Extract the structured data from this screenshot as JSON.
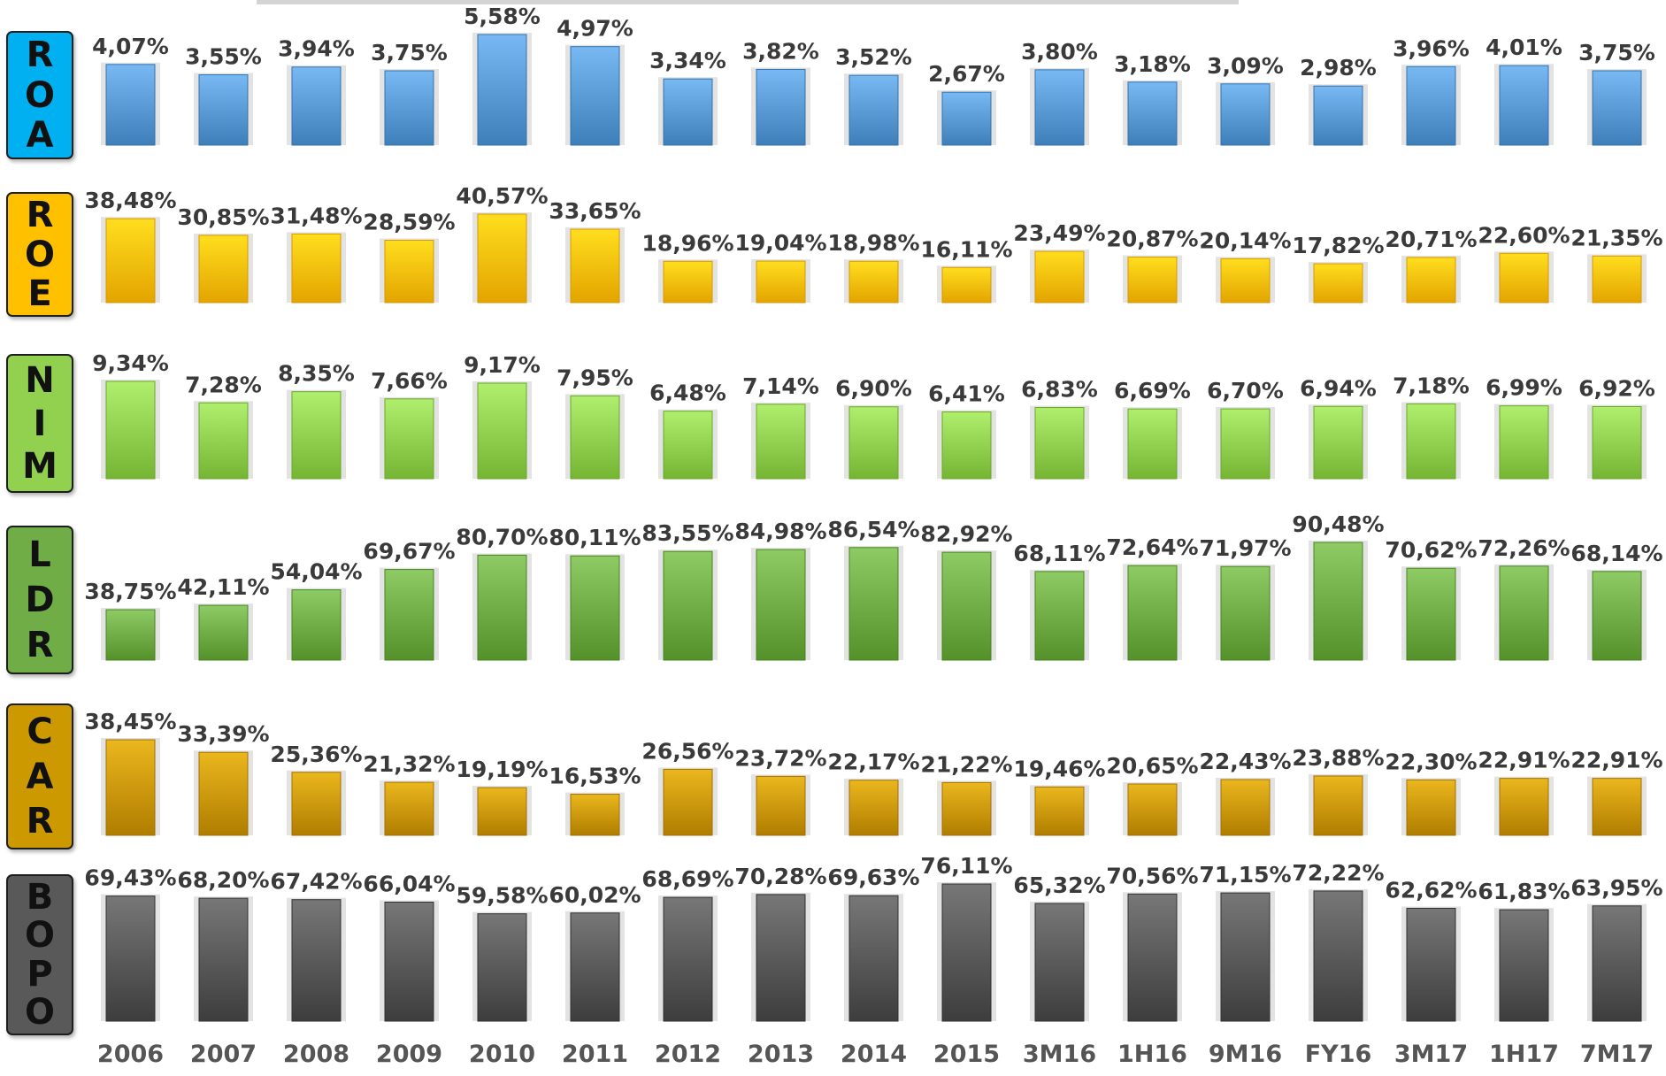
{
  "chart_data": {
    "type": "bar",
    "categories": [
      "2006",
      "2007",
      "2008",
      "2009",
      "2010",
      "2011",
      "2012",
      "2013",
      "2014",
      "2015",
      "3M16",
      "1H16",
      "9M16",
      "FY16",
      "3M17",
      "1H17",
      "7M17"
    ],
    "panels": [
      {
        "label": "ROA",
        "color": "#5b9bd5",
        "values": [
          4.07,
          3.55,
          3.94,
          3.75,
          5.58,
          4.97,
          3.34,
          3.82,
          3.52,
          2.67,
          3.8,
          3.18,
          3.09,
          2.98,
          3.96,
          4.01,
          3.75
        ],
        "value_labels": [
          "4,07%",
          "3,55%",
          "3,94%",
          "3,75%",
          "5,58%",
          "4,97%",
          "3,34%",
          "3,82%",
          "3,52%",
          "2,67%",
          "3,80%",
          "3,18%",
          "3,09%",
          "2,98%",
          "3,96%",
          "4,01%",
          "3,75%"
        ]
      },
      {
        "label": "ROE",
        "color": "#ffc000",
        "values": [
          38.48,
          30.85,
          31.48,
          28.59,
          40.57,
          33.65,
          18.96,
          19.04,
          18.98,
          16.11,
          23.49,
          20.87,
          20.14,
          17.82,
          20.71,
          22.6,
          21.35
        ],
        "value_labels": [
          "38,48%",
          "30,85%",
          "31,48%",
          "28,59%",
          "40,57%",
          "33,65%",
          "18,96%",
          "19,04%",
          "18,98%",
          "16,11%",
          "23,49%",
          "20,87%",
          "20,14%",
          "17,82%",
          "20,71%",
          "22,60%",
          "21,35%"
        ]
      },
      {
        "label": "NIM",
        "color": "#92d050",
        "values": [
          9.34,
          7.28,
          8.35,
          7.66,
          9.17,
          7.95,
          6.48,
          7.14,
          6.9,
          6.41,
          6.83,
          6.69,
          6.7,
          6.94,
          7.18,
          6.99,
          6.92
        ],
        "value_labels": [
          "9,34%",
          "7,28%",
          "8,35%",
          "7,66%",
          "9,17%",
          "7,95%",
          "6,48%",
          "7,14%",
          "6,90%",
          "6,41%",
          "6,83%",
          "6,69%",
          "6,70%",
          "6,94%",
          "7,18%",
          "6,99%",
          "6,92%"
        ]
      },
      {
        "label": "LDR",
        "color": "#70ad47",
        "values": [
          38.75,
          42.11,
          54.04,
          69.67,
          80.7,
          80.11,
          83.55,
          84.98,
          86.54,
          82.92,
          68.11,
          72.64,
          71.97,
          90.48,
          70.62,
          72.26,
          68.14
        ],
        "value_labels": [
          "38,75%",
          "42,11%",
          "54,04%",
          "69,67%",
          "80,70%",
          "80,11%",
          "83,55%",
          "84,98%",
          "86,54%",
          "82,92%",
          "68,11%",
          "72,64%",
          "71,97%",
          "90,48%",
          "70,62%",
          "72,26%",
          "68,14%"
        ]
      },
      {
        "label": "CAR",
        "color": "#cc9900",
        "values": [
          38.45,
          33.39,
          25.36,
          21.32,
          19.19,
          16.53,
          26.56,
          23.72,
          22.17,
          21.22,
          19.46,
          20.65,
          22.43,
          23.88,
          22.3,
          22.91,
          22.91
        ],
        "value_labels": [
          "38,45%",
          "33,39%",
          "25,36%",
          "21,32%",
          "19,19%",
          "16,53%",
          "26,56%",
          "23,72%",
          "22,17%",
          "21,22%",
          "19,46%",
          "20,65%",
          "22,43%",
          "23,88%",
          "22,30%",
          "22,91%",
          "22,91%"
        ]
      },
      {
        "label": "BOPO",
        "color": "#595959",
        "values": [
          69.43,
          68.2,
          67.42,
          66.04,
          59.58,
          60.02,
          68.69,
          70.28,
          69.63,
          76.11,
          65.32,
          70.56,
          71.15,
          72.22,
          62.62,
          61.83,
          63.95
        ],
        "value_labels": [
          "69,43%",
          "68,20%",
          "67,42%",
          "66,04%",
          "59,58%",
          "60,02%",
          "68,69%",
          "70,28%",
          "69,63%",
          "76,11%",
          "65,32%",
          "70,56%",
          "71,15%",
          "72,22%",
          "62,62%",
          "61,83%",
          "63,95%"
        ]
      }
    ],
    "label_box_colors": [
      "#00b0f0",
      "#ffc000",
      "#92d050",
      "#70ad47",
      "#cc9900",
      "#595959"
    ]
  }
}
